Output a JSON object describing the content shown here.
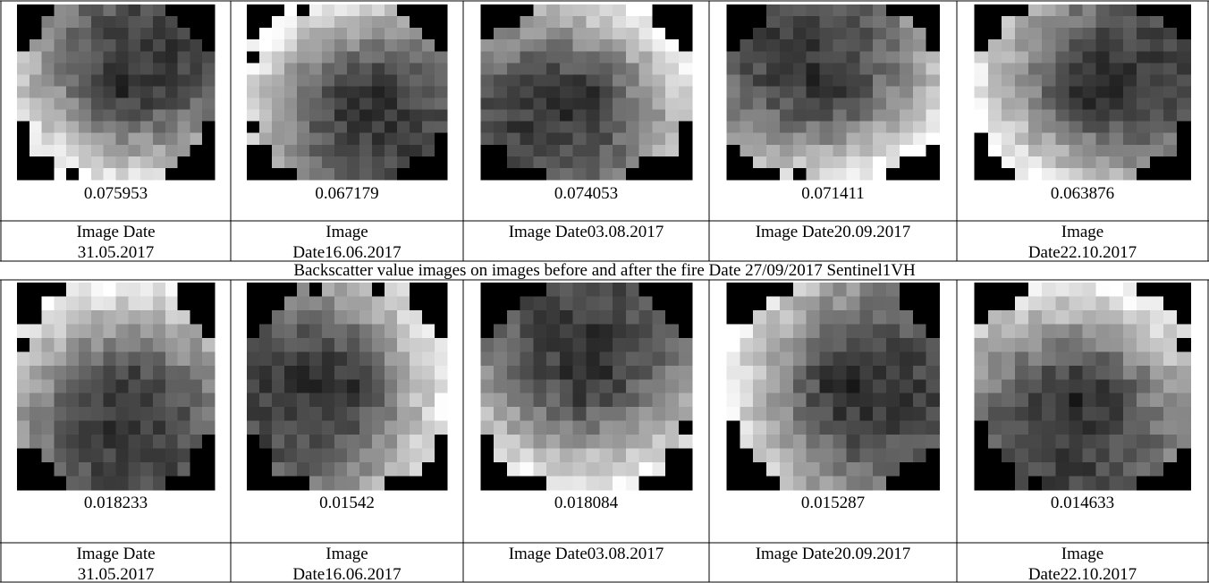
{
  "table": {
    "rows": [
      {
        "values": [
          "0.075953",
          "0.067179",
          "0.074053",
          "0.071411",
          "0.063876"
        ],
        "dates": [
          [
            "Image Date",
            "31.05.2017"
          ],
          [
            "Image",
            "Date16.06.2017"
          ],
          [
            "Image Date03.08.2017"
          ],
          [
            "Image Date20.09.2017"
          ],
          [
            "Image",
            "Date22.10.2017"
          ]
        ]
      },
      {
        "values": [
          "0.018233",
          "0.01542",
          "0.018084",
          "0.015287",
          "0.014633"
        ],
        "dates": [
          [
            "Image Date",
            "31.05.2017"
          ],
          [
            "Image",
            "Date16.06.2017"
          ],
          [
            "Image Date03.08.2017"
          ],
          [
            "Image Date20.09.2017"
          ],
          [
            "Image",
            "Date22.10.2017"
          ]
        ]
      }
    ],
    "caption": "Backscatter value images on images before and after the fire Date 27/09/2017 Sentinel1VH"
  }
}
